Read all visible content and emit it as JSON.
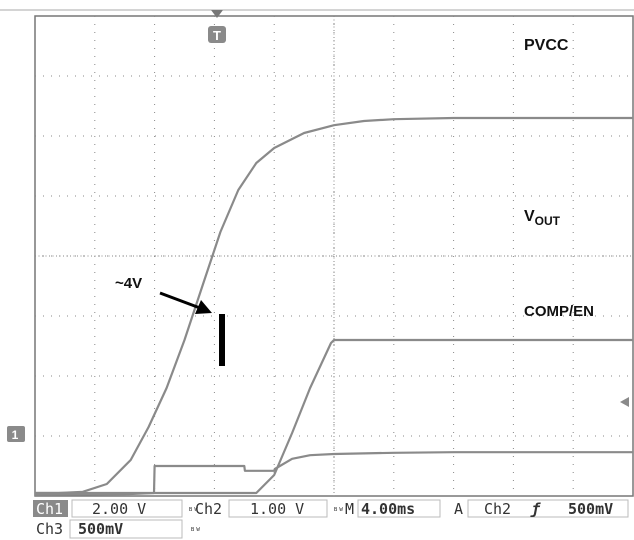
{
  "chart_data": {
    "type": "line",
    "grid": true,
    "x_divisions": 10,
    "y_divisions": 8,
    "series": [
      {
        "name": "PVCC",
        "color": "#8a8a8a",
        "x": [
          0,
          0.4,
          0.8,
          1.2,
          1.6,
          1.9,
          2.2,
          2.5,
          2.8,
          3.1,
          3.4,
          3.7,
          4.0,
          4.5,
          5.0,
          5.5,
          6.0,
          7.0,
          8.0,
          9.0,
          10.0
        ],
        "y": [
          0.05,
          0.05,
          0.07,
          0.2,
          0.6,
          1.15,
          1.8,
          2.6,
          3.5,
          4.4,
          5.1,
          5.55,
          5.8,
          6.05,
          6.18,
          6.25,
          6.28,
          6.3,
          6.3,
          6.3,
          6.3
        ]
      },
      {
        "name": "COMP/EN",
        "color": "#8a8a8a",
        "x": [
          0,
          1.5,
          1.99,
          2.0,
          2.2,
          3.0,
          3.5,
          3.51,
          4.0,
          4.01,
          4.3,
          4.6,
          5.0,
          6.0,
          7.0,
          8.0,
          9.0,
          10.0
        ],
        "y": [
          0.02,
          0.03,
          0.05,
          0.5,
          0.5,
          0.5,
          0.5,
          0.42,
          0.42,
          0.45,
          0.62,
          0.68,
          0.7,
          0.72,
          0.73,
          0.73,
          0.73,
          0.73
        ]
      },
      {
        "name": "VOUT",
        "color": "#8a8a8a",
        "x": [
          0,
          3.7,
          4.0,
          4.3,
          4.6,
          4.95,
          5.0,
          6.0,
          7.0,
          8.0,
          9.0,
          10.0
        ],
        "y": [
          0.05,
          0.05,
          0.35,
          1.05,
          1.8,
          2.55,
          2.6,
          2.6,
          2.6,
          2.6,
          2.6,
          2.6
        ]
      }
    ],
    "marker_x": 2.0,
    "annotations": [
      {
        "text": "~4V",
        "x": 1.4,
        "y": 5.1
      },
      {
        "text": "PVCC",
        "x": 8.1,
        "y": 7.55
      },
      {
        "text": "V",
        "sub": "OUT",
        "x": 8.1,
        "y": 5.2
      },
      {
        "text": "COMP/EN",
        "x": 8.1,
        "y": 3.8
      }
    ],
    "trigger_marker": "T",
    "ground_marker": "1"
  },
  "readout": {
    "row1": [
      {
        "label": "Ch1",
        "value": "2.00 V",
        "coupling": "BW"
      },
      {
        "label": "Ch2",
        "value": "1.00 V",
        "coupling": "BW"
      },
      {
        "label": "M",
        "value": "4.00ms"
      },
      {
        "label": "A",
        "value": "Ch2"
      },
      {
        "label": "trigger_slope",
        "value": "ƒ"
      },
      {
        "label": "level",
        "value": "500mV"
      }
    ],
    "row2": [
      {
        "label": "Ch3",
        "value": "500mV",
        "coupling": "BW"
      }
    ]
  }
}
